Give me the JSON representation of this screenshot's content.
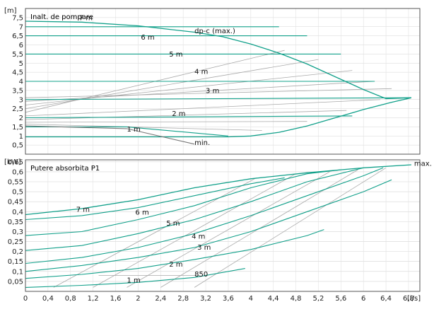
{
  "chart_data": [
    {
      "type": "line",
      "title": "Inalt. de pompare",
      "ylabel": "[m]",
      "xlabel": "[l/s]",
      "xlim": [
        0,
        7
      ],
      "ylim": [
        0,
        8
      ],
      "x_ticks": [
        "0",
        "0,4",
        "0,8",
        "1,2",
        "1,6",
        "2",
        "2,4",
        "2,8",
        "3,2",
        "3,6",
        "4",
        "4,4",
        "4,8",
        "5,2",
        "5,6",
        "6",
        "6,4",
        "6,8"
      ],
      "y_ticks": [
        "0,5",
        "1",
        "1,5",
        "2",
        "2,5",
        "3",
        "3,5",
        "4",
        "4,5",
        "5",
        "5,5",
        "6",
        "6,5",
        "7",
        "7,5"
      ],
      "teal": "#11a08a",
      "gray": "#a9a9a9",
      "series": [
        {
          "name": "dp-c (max.)",
          "kind": "envelope",
          "points": [
            [
              0,
              7.3
            ],
            [
              1,
              7.25
            ],
            [
              2,
              7.05
            ],
            [
              3,
              6.7
            ],
            [
              3.5,
              6.45
            ],
            [
              4,
              6.05
            ],
            [
              4.5,
              5.55
            ],
            [
              5,
              4.95
            ],
            [
              5.5,
              4.25
            ],
            [
              6,
              3.55
            ],
            [
              6.4,
              3.05
            ],
            [
              6.85,
              3.1
            ],
            [
              6.5,
              2.85
            ],
            [
              6,
              2.45
            ],
            [
              5.5,
              2.0
            ],
            [
              5,
              1.55
            ],
            [
              4.5,
              1.2
            ],
            [
              4,
              1.0
            ],
            [
              3.6,
              0.95
            ],
            [
              0,
              0.95
            ]
          ]
        },
        {
          "name": "7 m",
          "points": [
            [
              0,
              7.0
            ],
            [
              4.5,
              7.0
            ]
          ]
        },
        {
          "name": "6 m",
          "points": [
            [
              0,
              6.5
            ],
            [
              5,
              6.5
            ]
          ]
        },
        {
          "name": "5 m",
          "points": [
            [
              0,
              5.5
            ],
            [
              5.6,
              5.5
            ]
          ]
        },
        {
          "name": "4 m",
          "points": [
            [
              0,
              4.0
            ],
            [
              6.2,
              4.0
            ]
          ]
        },
        {
          "name": "3 m",
          "points": [
            [
              0,
              3.0
            ],
            [
              6.85,
              3.1
            ]
          ]
        },
        {
          "name": "2 m",
          "points": [
            [
              0,
              2.0
            ],
            [
              5.8,
              2.1
            ]
          ]
        },
        {
          "name": "1 m",
          "points": [
            [
              0,
              1.5
            ],
            [
              1.8,
              1.5
            ],
            [
              3.6,
              1.0
            ]
          ]
        },
        {
          "name": "min.",
          "kind": "gray",
          "points": [
            [
              0,
              1.55
            ],
            [
              1.8,
              1.4
            ],
            [
              3.0,
              0.55
            ]
          ]
        }
      ],
      "gray_lines": [
        [
          [
            0,
            2.3
          ],
          [
            4.6,
            5.7
          ]
        ],
        [
          [
            0,
            2.5
          ],
          [
            5.2,
            5.2
          ]
        ],
        [
          [
            0,
            2.7
          ],
          [
            5.8,
            4.6
          ]
        ],
        [
          [
            0,
            2.9
          ],
          [
            6.2,
            4.0
          ]
        ],
        [
          [
            0,
            3.1
          ],
          [
            6.5,
            3.6
          ]
        ],
        [
          [
            0,
            2.1
          ],
          [
            6.3,
            3.0
          ]
        ],
        [
          [
            0,
            1.9
          ],
          [
            5.7,
            2.4
          ]
        ],
        [
          [
            0,
            1.75
          ],
          [
            5.0,
            1.8
          ]
        ],
        [
          [
            0,
            1.65
          ],
          [
            4.2,
            1.3
          ]
        ]
      ],
      "annotations": [
        {
          "text": "7 m",
          "x": 0.95,
          "y": 7.35
        },
        {
          "text": "6 m",
          "x": 2.05,
          "y": 6.3
        },
        {
          "text": "dp-c (max.)",
          "x": 3.0,
          "y": 6.65
        },
        {
          "text": "5 m",
          "x": 2.55,
          "y": 5.35
        },
        {
          "text": "4 m",
          "x": 3.0,
          "y": 4.4
        },
        {
          "text": "3 m",
          "x": 3.2,
          "y": 3.35
        },
        {
          "text": "2 m",
          "x": 2.6,
          "y": 2.1
        },
        {
          "text": "1 m",
          "x": 1.8,
          "y": 1.25
        },
        {
          "text": "min.",
          "x": 3.0,
          "y": 0.5
        }
      ]
    },
    {
      "type": "line",
      "title": "Putere absorbita P1",
      "ylabel": "[kW]",
      "xlabel": "[l/s]",
      "xlim": [
        0,
        7
      ],
      "ylim": [
        0,
        0.66
      ],
      "x_ticks": [
        "0",
        "0,4",
        "0,8",
        "1,2",
        "1,6",
        "2",
        "2,4",
        "2,8",
        "3,2",
        "3,6",
        "4",
        "4,4",
        "4,8",
        "5,2",
        "5,6",
        "6",
        "6,4",
        "6,8"
      ],
      "y_ticks": [
        "0,05",
        "0,1",
        "0,15",
        "0,2",
        "0,25",
        "0,3",
        "0,35",
        "0,4",
        "0,45",
        "0,5",
        "0,55",
        "0,6",
        "0,65"
      ],
      "series": [
        {
          "name": "max.",
          "kind": "envelope",
          "points": [
            [
              0,
              0.385
            ],
            [
              1,
              0.415
            ],
            [
              2,
              0.46
            ],
            [
              3,
              0.52
            ],
            [
              4,
              0.565
            ],
            [
              5,
              0.595
            ],
            [
              6,
              0.62
            ],
            [
              6.85,
              0.635
            ]
          ]
        },
        {
          "name": "7 m",
          "points": [
            [
              0,
              0.36
            ],
            [
              1,
              0.38
            ],
            [
              2,
              0.42
            ],
            [
              3,
              0.48
            ],
            [
              4,
              0.54
            ],
            [
              4.6,
              0.57
            ]
          ]
        },
        {
          "name": "6 m",
          "points": [
            [
              0,
              0.28
            ],
            [
              1,
              0.3
            ],
            [
              2,
              0.36
            ],
            [
              3,
              0.43
            ],
            [
              4,
              0.52
            ],
            [
              5,
              0.59
            ],
            [
              5.6,
              0.61
            ]
          ]
        },
        {
          "name": "5 m",
          "points": [
            [
              0,
              0.205
            ],
            [
              1,
              0.23
            ],
            [
              2,
              0.29
            ],
            [
              3,
              0.36
            ],
            [
              4,
              0.45
            ],
            [
              5,
              0.55
            ],
            [
              6.0,
              0.62
            ]
          ]
        },
        {
          "name": "4 m",
          "points": [
            [
              0,
              0.14
            ],
            [
              1,
              0.17
            ],
            [
              2,
              0.22
            ],
            [
              3,
              0.29
            ],
            [
              4,
              0.38
            ],
            [
              5,
              0.48
            ],
            [
              6.0,
              0.58
            ],
            [
              6.35,
              0.62
            ]
          ]
        },
        {
          "name": "3 m",
          "points": [
            [
              0,
              0.1
            ],
            [
              1,
              0.13
            ],
            [
              2,
              0.17
            ],
            [
              3,
              0.22
            ],
            [
              4,
              0.3
            ],
            [
              5,
              0.4
            ],
            [
              6,
              0.5
            ],
            [
              6.5,
              0.56
            ]
          ]
        },
        {
          "name": "2 m",
          "points": [
            [
              0,
              0.065
            ],
            [
              1,
              0.085
            ],
            [
              2,
              0.115
            ],
            [
              3,
              0.16
            ],
            [
              4,
              0.21
            ],
            [
              5,
              0.28
            ],
            [
              5.3,
              0.31
            ]
          ]
        },
        {
          "name": "1 m",
          "points": [
            [
              0,
              0.02
            ],
            [
              1,
              0.03
            ],
            [
              2,
              0.045
            ],
            [
              3,
              0.07
            ],
            [
              3.9,
              0.115
            ]
          ]
        }
      ],
      "gray_lines": [
        [
          [
            0.5,
            0.02
          ],
          [
            4.1,
            0.57
          ]
        ],
        [
          [
            1.2,
            0.02
          ],
          [
            4.8,
            0.59
          ]
        ],
        [
          [
            1.8,
            0.02
          ],
          [
            5.4,
            0.6
          ]
        ],
        [
          [
            2.4,
            0.02
          ],
          [
            5.9,
            0.61
          ]
        ],
        [
          [
            3.0,
            0.02
          ],
          [
            6.4,
            0.62
          ]
        ],
        [
          [
            1.3,
            0.08
          ],
          [
            3.1,
            0.08
          ]
        ]
      ],
      "annotations": [
        {
          "text": "7 m",
          "x": 0.9,
          "y": 0.4
        },
        {
          "text": "6 m",
          "x": 1.95,
          "y": 0.385
        },
        {
          "text": "5 m",
          "x": 2.5,
          "y": 0.33
        },
        {
          "text": "4 m",
          "x": 2.95,
          "y": 0.265
        },
        {
          "text": "3 m",
          "x": 3.05,
          "y": 0.21
        },
        {
          "text": "2 m",
          "x": 2.55,
          "y": 0.125
        },
        {
          "text": "1 m",
          "x": 1.8,
          "y": 0.045
        },
        {
          "text": "850",
          "x": 3.0,
          "y": 0.075
        },
        {
          "text": "max.",
          "x": 6.9,
          "y": 0.63
        }
      ]
    }
  ]
}
